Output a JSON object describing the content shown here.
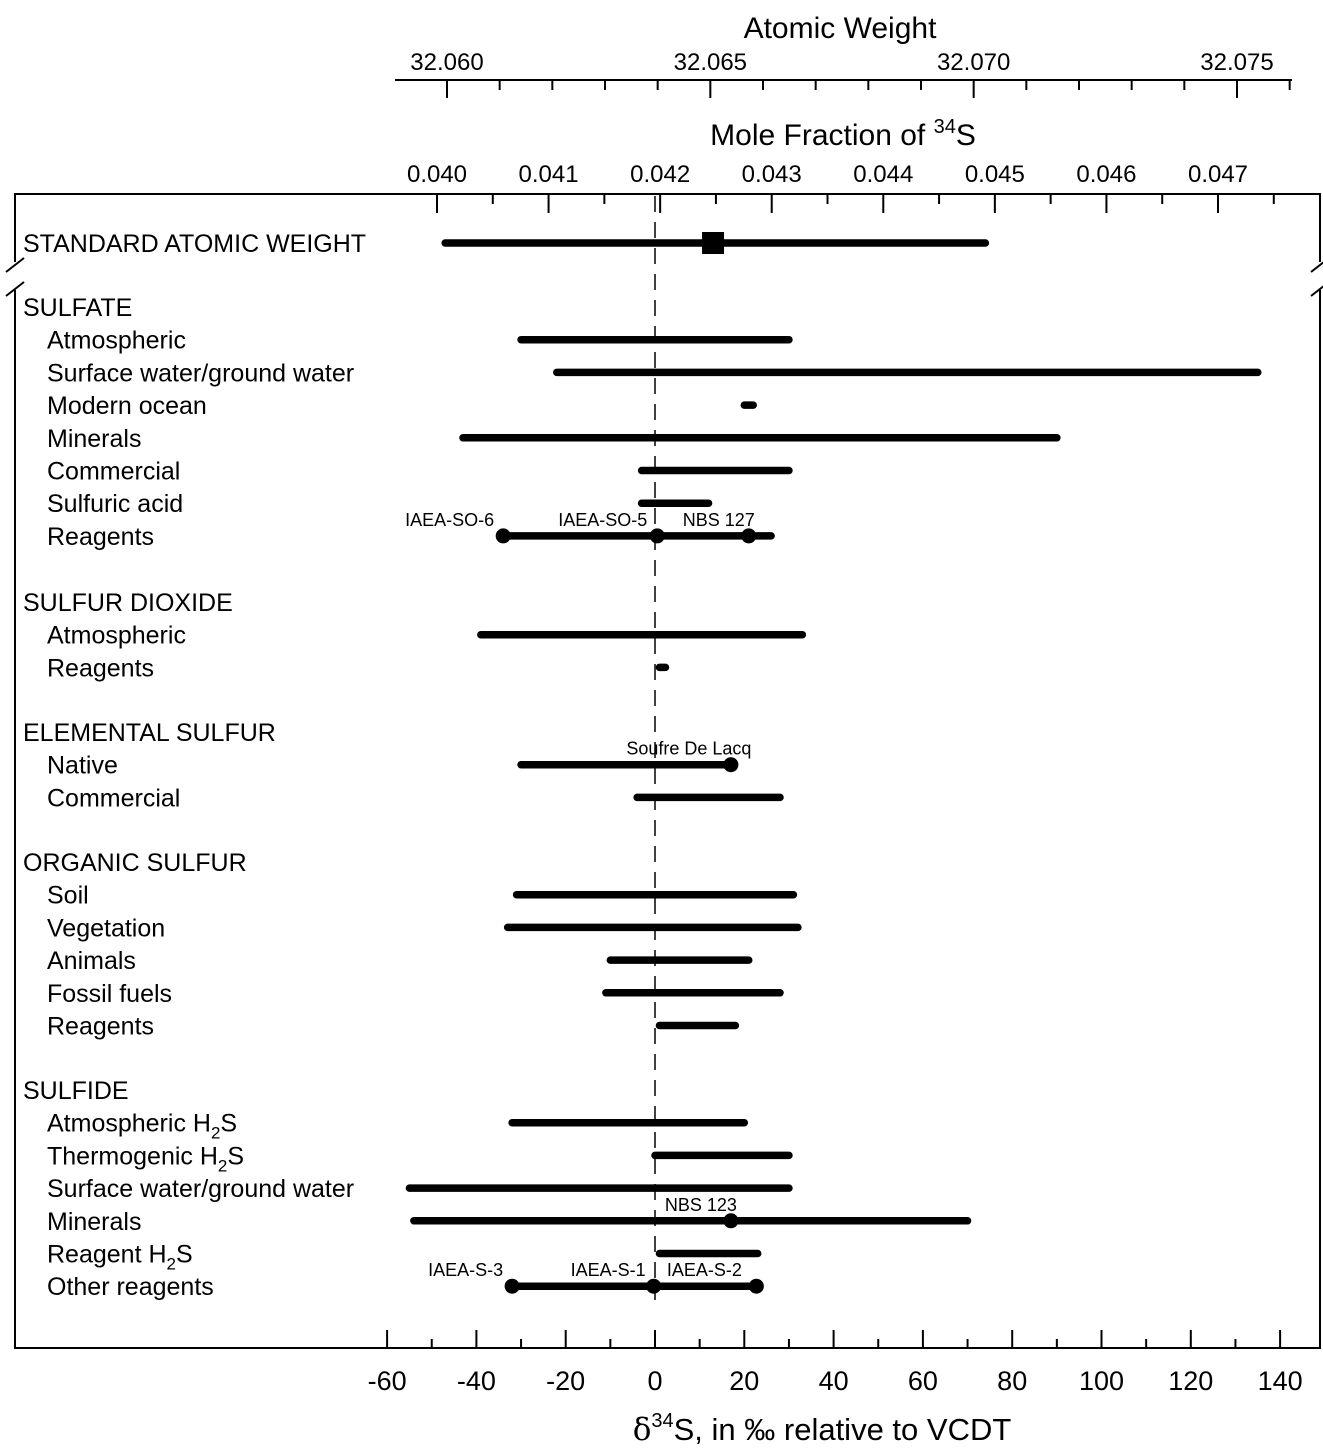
{
  "chart_data": {
    "type": "range",
    "top_axis_1": {
      "label": "Atomic Weight",
      "ticks": [
        "32.060",
        "32.065",
        "32.070",
        "32.075"
      ]
    },
    "top_axis_2": {
      "label_prefix": "Mole Fraction of ",
      "label_superscript": "34",
      "label_suffix": "S",
      "ticks": [
        "0.040",
        "0.041",
        "0.042",
        "0.043",
        "0.044",
        "0.045",
        "0.046",
        "0.047"
      ]
    },
    "x_axis": {
      "label_symbol": "δ",
      "label_superscript": "34",
      "label_suffix": "S, in ‰ relative to VCDT",
      "ticks": [
        "-60",
        "-40",
        "-20",
        "0",
        "20",
        "40",
        "60",
        "80",
        "100",
        "120",
        "140"
      ],
      "range": [
        -60,
        140
      ]
    },
    "reference_line": 0,
    "standard_atomic_weight": {
      "label": "STANDARD ATOMIC WEIGHT",
      "range": [
        -47,
        74
      ],
      "marker": 13
    },
    "groups": [
      {
        "name": "SULFATE",
        "rows": [
          {
            "label": "Atmospheric",
            "range": [
              -30,
              30
            ]
          },
          {
            "label": "Surface water/ground water",
            "range": [
              -22,
              135
            ]
          },
          {
            "label": "Modern ocean",
            "range": [
              20,
              22
            ]
          },
          {
            "label": "Minerals",
            "range": [
              -43,
              90
            ]
          },
          {
            "label": "Commercial",
            "range": [
              -3,
              30
            ]
          },
          {
            "label": "Sulfuric acid",
            "range": [
              -3,
              12
            ]
          },
          {
            "label": "Reagents",
            "range": [
              -34,
              26
            ],
            "points": [
              {
                "name": "IAEA-SO-6",
                "value": -34
              },
              {
                "name": "IAEA-SO-5",
                "value": 0.5
              },
              {
                "name": "NBS 127",
                "value": 21
              }
            ]
          }
        ]
      },
      {
        "name": "SULFUR DIOXIDE",
        "rows": [
          {
            "label": "Atmospheric",
            "range": [
              -39,
              33
            ]
          },
          {
            "label": "Reagents",
            "range": [
              1,
              2
            ]
          }
        ]
      },
      {
        "name": "ELEMENTAL SULFUR",
        "rows": [
          {
            "label": "Native",
            "range": [
              -30,
              17
            ],
            "points": [
              {
                "name": "Soufre De Lacq",
                "value": 17
              }
            ]
          },
          {
            "label": "Commercial",
            "range": [
              -4,
              28
            ]
          }
        ]
      },
      {
        "name": "ORGANIC SULFUR",
        "rows": [
          {
            "label": "Soil",
            "range": [
              -31,
              31
            ]
          },
          {
            "label": "Vegetation",
            "range": [
              -33,
              32
            ]
          },
          {
            "label": "Animals",
            "range": [
              -10,
              21
            ]
          },
          {
            "label": "Fossil fuels",
            "range": [
              -11,
              28
            ]
          },
          {
            "label": "Reagents",
            "range": [
              1,
              18
            ]
          }
        ]
      },
      {
        "name": "SULFIDE",
        "rows": [
          {
            "label": "Atmospheric H",
            "sub": "2",
            "label_after": "S",
            "range": [
              -32,
              20
            ]
          },
          {
            "label": "Thermogenic H",
            "sub": "2",
            "label_after": "S",
            "range": [
              0,
              30
            ]
          },
          {
            "label": "Surface water/ground water",
            "range": [
              -55,
              30
            ]
          },
          {
            "label": "Minerals",
            "range": [
              -54,
              70
            ],
            "points": [
              {
                "name": "NBS 123",
                "value": 17
              }
            ]
          },
          {
            "label": "Reagent H",
            "sub": "2",
            "label_after": "S",
            "range": [
              1,
              23
            ]
          },
          {
            "label": "Other reagents",
            "range": [
              -32,
              23
            ],
            "points": [
              {
                "name": "IAEA-S-3",
                "value": -32
              },
              {
                "name": "IAEA-S-1",
                "value": -0.3
              },
              {
                "name": "IAEA-S-2",
                "value": 22.7
              }
            ]
          }
        ]
      }
    ]
  }
}
